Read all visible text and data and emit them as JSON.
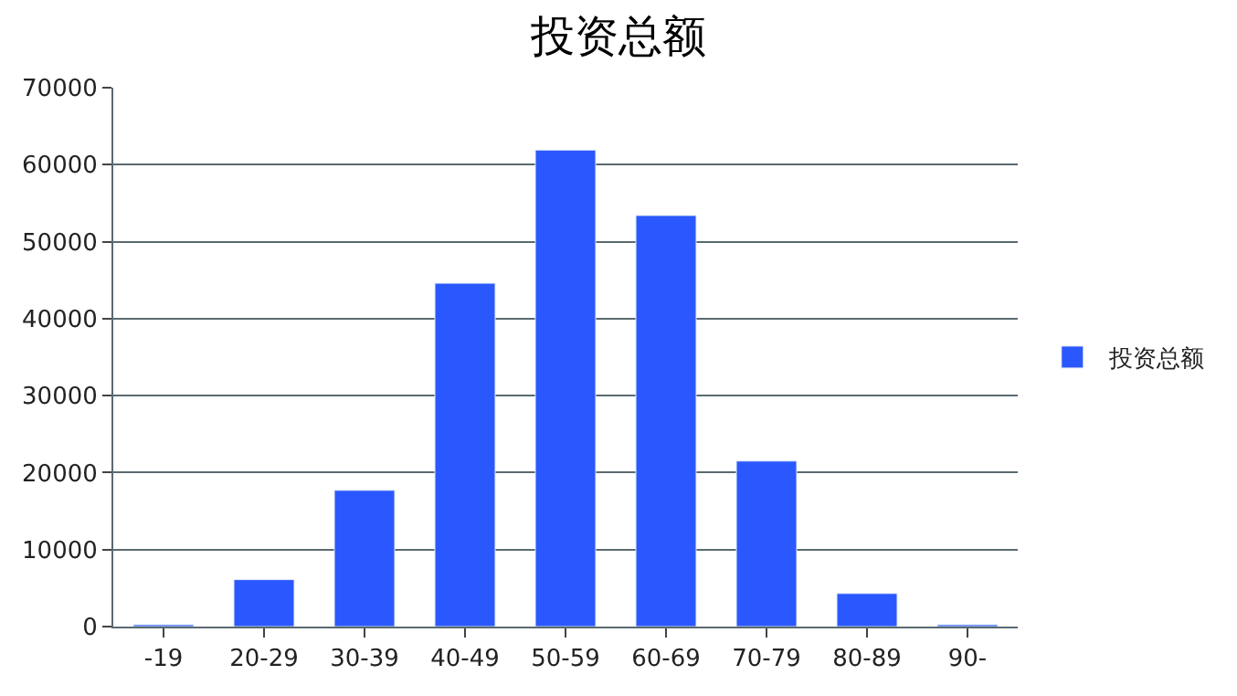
{
  "chart_data": {
    "type": "bar",
    "title": "投资总额",
    "categories": [
      "-19",
      "20-29",
      "30-39",
      "40-49",
      "50-59",
      "60-69",
      "70-79",
      "80-89",
      "90-"
    ],
    "series": [
      {
        "name": "投资总额",
        "color": "#2b58fe",
        "values": [
          250,
          6100,
          17700,
          44600,
          61900,
          53400,
          21500,
          4300,
          250
        ]
      }
    ],
    "ylim": [
      0,
      70000
    ],
    "yticks": [
      0,
      10000,
      20000,
      30000,
      40000,
      50000,
      60000,
      70000
    ],
    "grid": "y",
    "legend": "right"
  }
}
